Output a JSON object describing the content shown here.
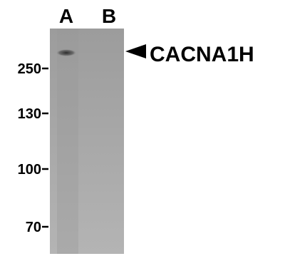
{
  "lanes": [
    "A",
    "B"
  ],
  "markers": [
    "250",
    "130",
    "100",
    "70"
  ],
  "band_label": "CACNA1H"
}
